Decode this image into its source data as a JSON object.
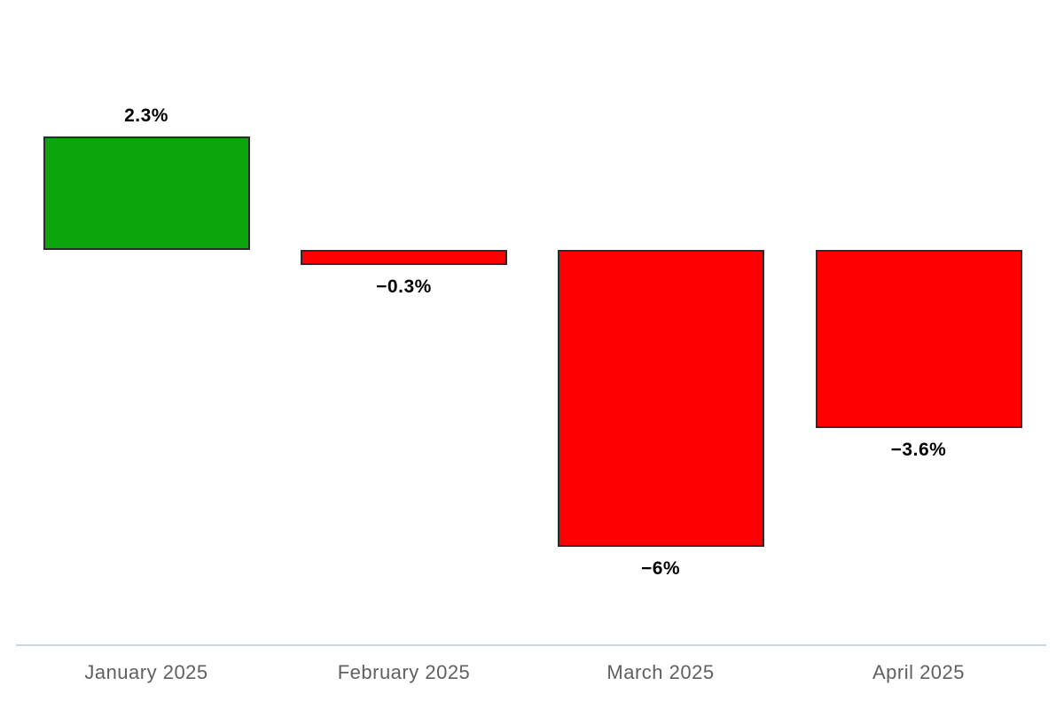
{
  "chart_data": {
    "type": "bar",
    "title": "",
    "categories": [
      "January 2025",
      "February 2025",
      "March 2025",
      "April 2025"
    ],
    "values": [
      2.3,
      -0.3,
      -6,
      -3.6
    ],
    "value_labels": [
      "2.3%",
      "−0.3%",
      "−6%",
      "−3.6%"
    ],
    "unit": "%",
    "ylim": [
      -6.5,
      2.5
    ],
    "grid": false,
    "legend": false,
    "colors": {
      "positive_bar": "#0CA60C",
      "negative_bar": "#FF0000",
      "bar_border": "#2B2B2B",
      "axis_line": "#C9D4E6",
      "category_label": "#606060",
      "value_label": "#000000",
      "background": "#FFFFFF"
    }
  }
}
